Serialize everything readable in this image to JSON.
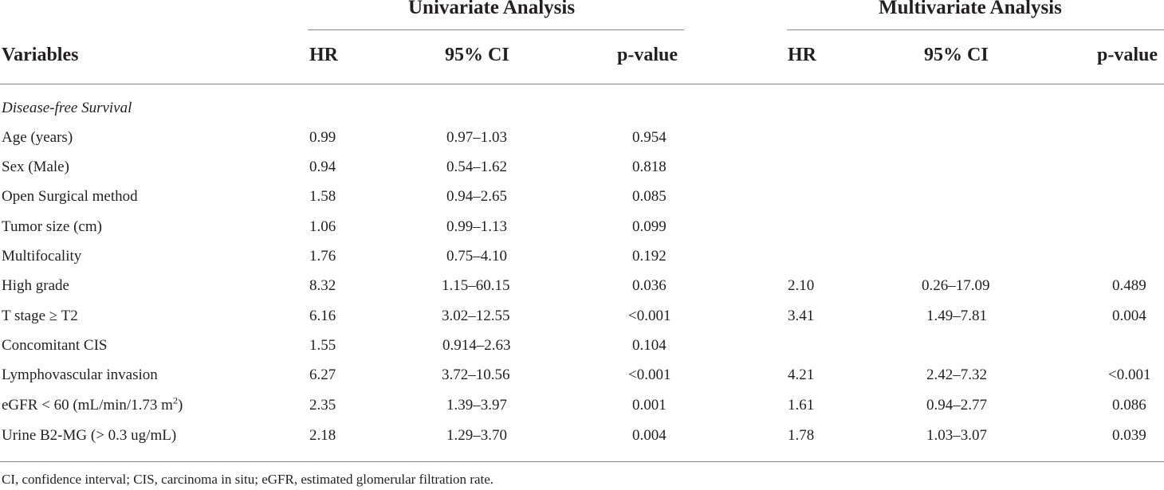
{
  "table": {
    "group_headers": {
      "univariate": "Univariate Analysis",
      "multivariate": "Multivariate Analysis"
    },
    "column_headers": {
      "variables": "Variables",
      "uni_hr": "HR",
      "uni_ci": "95% CI",
      "uni_p": "p-value",
      "multi_hr": "HR",
      "multi_ci": "95% CI",
      "multi_p": "p-value"
    },
    "section_label": "Disease-free Survival",
    "rows": [
      {
        "variable": "Age (years)",
        "uni_hr": "0.99",
        "uni_ci": "0.97–1.03",
        "uni_p": "0.954",
        "multi_hr": "",
        "multi_ci": "",
        "multi_p": ""
      },
      {
        "variable": "Sex (Male)",
        "uni_hr": "0.94",
        "uni_ci": "0.54–1.62",
        "uni_p": "0.818",
        "multi_hr": "",
        "multi_ci": "",
        "multi_p": ""
      },
      {
        "variable": "Open Surgical method",
        "uni_hr": "1.58",
        "uni_ci": "0.94–2.65",
        "uni_p": "0.085",
        "multi_hr": "",
        "multi_ci": "",
        "multi_p": ""
      },
      {
        "variable": "Tumor size (cm)",
        "uni_hr": "1.06",
        "uni_ci": "0.99–1.13",
        "uni_p": "0.099",
        "multi_hr": "",
        "multi_ci": "",
        "multi_p": ""
      },
      {
        "variable": "Multifocality",
        "uni_hr": "1.76",
        "uni_ci": "0.75–4.10",
        "uni_p": "0.192",
        "multi_hr": "",
        "multi_ci": "",
        "multi_p": ""
      },
      {
        "variable": "High grade",
        "uni_hr": "8.32",
        "uni_ci": "1.15–60.15",
        "uni_p": "0.036",
        "multi_hr": "2.10",
        "multi_ci": "0.26–17.09",
        "multi_p": "0.489"
      },
      {
        "variable": "T stage ≥ T2",
        "uni_hr": "6.16",
        "uni_ci": "3.02–12.55",
        "uni_p": "<0.001",
        "multi_hr": "3.41",
        "multi_ci": "1.49–7.81",
        "multi_p": "0.004"
      },
      {
        "variable": "Concomitant CIS",
        "uni_hr": "1.55",
        "uni_ci": "0.914–2.63",
        "uni_p": "0.104",
        "multi_hr": "",
        "multi_ci": "",
        "multi_p": ""
      },
      {
        "variable": "Lymphovascular invasion",
        "uni_hr": "6.27",
        "uni_ci": "3.72–10.56",
        "uni_p": "<0.001",
        "multi_hr": "4.21",
        "multi_ci": "2.42–7.32",
        "multi_p": "<0.001"
      },
      {
        "variable": "eGFR < 60 (mL/min/1.73 m",
        "variable_sup": "2",
        "variable_tail": ")",
        "uni_hr": "2.35",
        "uni_ci": "1.39–3.97",
        "uni_p": "0.001",
        "multi_hr": "1.61",
        "multi_ci": "0.94–2.77",
        "multi_p": "0.086"
      },
      {
        "variable": "Urine B2-MG (> 0.3 ug/mL)",
        "uni_hr": "2.18",
        "uni_ci": "1.29–3.70",
        "uni_p": "0.004",
        "multi_hr": "1.78",
        "multi_ci": "1.03–3.07",
        "multi_p": "0.039"
      }
    ],
    "footnote": "CI, confidence interval; CIS, carcinoma in situ; eGFR, estimated glomerular filtration rate."
  }
}
